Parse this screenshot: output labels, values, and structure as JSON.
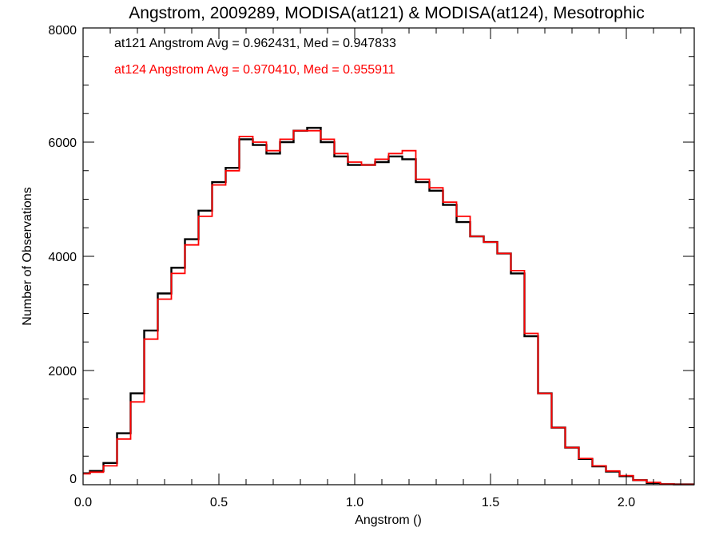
{
  "chart_data": {
    "type": "line",
    "style": "step-histogram",
    "title": "Angstrom, 2009289, MODISA(at121) & MODISA(at124), Mesotrophic",
    "xlabel": "Angstrom ()",
    "ylabel": "Number of Observations",
    "xlim": [
      0.0,
      2.25
    ],
    "ylim": [
      0,
      8000
    ],
    "xticks": [
      0.0,
      0.5,
      1.0,
      1.5,
      2.0
    ],
    "xtick_labels": [
      "0.0",
      "0.5",
      "1.0",
      "1.5",
      "2.0"
    ],
    "yticks": [
      0,
      2000,
      4000,
      6000,
      8000
    ],
    "ytick_labels": [
      "0",
      "2000",
      "4000",
      "6000",
      "8000"
    ],
    "grid": false,
    "legend": "top-left",
    "annotations": [
      {
        "text": "at121 Angstrom Avg = 0.962431, Med = 0.947833",
        "color": "#000000"
      },
      {
        "text": "at124 Angstrom Avg = 0.970410, Med = 0.955911",
        "color": "#ff0000"
      }
    ],
    "x": [
      0.0,
      0.05,
      0.1,
      0.15,
      0.2,
      0.25,
      0.3,
      0.35,
      0.4,
      0.45,
      0.5,
      0.55,
      0.6,
      0.65,
      0.7,
      0.75,
      0.8,
      0.85,
      0.9,
      0.95,
      1.0,
      1.05,
      1.1,
      1.15,
      1.2,
      1.25,
      1.3,
      1.35,
      1.4,
      1.45,
      1.5,
      1.55,
      1.6,
      1.65,
      1.7,
      1.75,
      1.8,
      1.85,
      1.9,
      1.95,
      2.0,
      2.05,
      2.1,
      2.15,
      2.2,
      2.25
    ],
    "series": [
      {
        "color": "#000000",
        "values": [
          200,
          240,
          380,
          900,
          1600,
          2700,
          3350,
          3800,
          4300,
          4800,
          5300,
          5550,
          6050,
          5950,
          5800,
          6000,
          6200,
          6250,
          6000,
          5750,
          5600,
          5600,
          5650,
          5750,
          5700,
          5300,
          5150,
          4900,
          4600,
          4350,
          4250,
          4050,
          3700,
          2600,
          1600,
          1000,
          650,
          450,
          320,
          230,
          150,
          80,
          30,
          10,
          5,
          5
        ]
      },
      {
        "color": "#ff0000",
        "values": [
          190,
          220,
          330,
          800,
          1450,
          2550,
          3250,
          3700,
          4200,
          4700,
          5250,
          5500,
          6100,
          6000,
          5850,
          6050,
          6200,
          6200,
          6050,
          5800,
          5650,
          5600,
          5700,
          5800,
          5850,
          5350,
          5200,
          4950,
          4700,
          4350,
          4250,
          4050,
          3750,
          2650,
          1600,
          1000,
          650,
          460,
          330,
          240,
          160,
          80,
          40,
          10,
          5,
          5
        ]
      }
    ]
  }
}
